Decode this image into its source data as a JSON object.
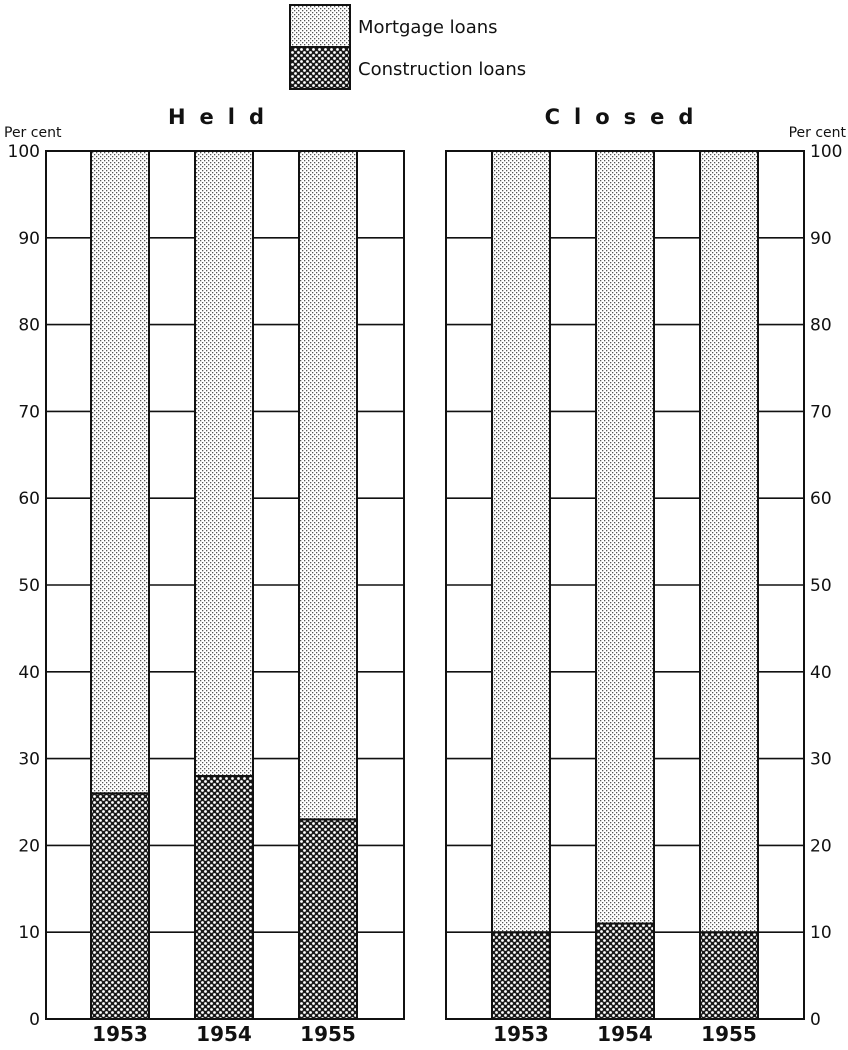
{
  "chart_data": [
    {
      "type": "bar",
      "stacked": true,
      "title": "Held",
      "ylabel": "Per cent",
      "ylim": [
        0,
        100
      ],
      "yticks": [
        "0",
        "10",
        "20",
        "30",
        "40",
        "50",
        "60",
        "70",
        "80",
        "90",
        "100"
      ],
      "categories": [
        "1953",
        "1954",
        "1955"
      ],
      "series": [
        {
          "name": "Construction loans",
          "values": [
            26,
            28,
            23
          ]
        },
        {
          "name": "Mortgage loans",
          "values": [
            74,
            72,
            77
          ]
        }
      ],
      "grid": true
    },
    {
      "type": "bar",
      "stacked": true,
      "title": "Closed",
      "ylabel": "Per cent",
      "ylim": [
        0,
        100
      ],
      "yticks": [
        "0",
        "10",
        "20",
        "30",
        "40",
        "50",
        "60",
        "70",
        "80",
        "90",
        "100"
      ],
      "categories": [
        "1953",
        "1954",
        "1955"
      ],
      "series": [
        {
          "name": "Construction loans",
          "values": [
            10,
            11,
            10
          ]
        },
        {
          "name": "Mortgage loans",
          "values": [
            90,
            89,
            90
          ]
        }
      ],
      "grid": true
    }
  ],
  "legend": {
    "placement": "top-center",
    "items": [
      {
        "label": "Mortgage loans",
        "pattern": "light-stipple"
      },
      {
        "label": "Construction loans",
        "pattern": "dense-dots"
      }
    ]
  }
}
